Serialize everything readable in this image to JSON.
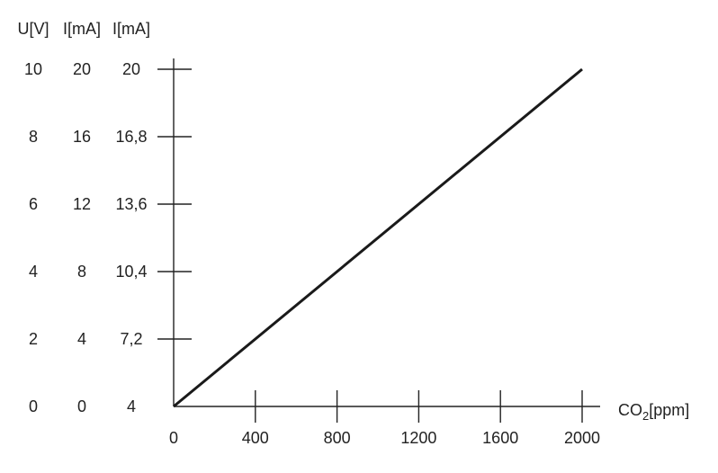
{
  "chart_data": {
    "type": "line",
    "title": "",
    "xlabel": "CO2[ppm]",
    "xlabel_main": "CO",
    "xlabel_sub": "2",
    "xlabel_unit": "[ppm]",
    "xlim": [
      0,
      2000
    ],
    "x_ticks": [
      "0",
      "400",
      "800",
      "1200",
      "1600",
      "2000"
    ],
    "x_tick_values": [
      0,
      400,
      800,
      1200,
      1600,
      2000
    ],
    "ylim": [
      0,
      10
    ],
    "y_tick_values": [
      0,
      2,
      4,
      6,
      8,
      10
    ],
    "y_scales": [
      {
        "header": "U[V]",
        "labels": [
          "0",
          "2",
          "4",
          "6",
          "8",
          "10"
        ]
      },
      {
        "header": "I[mA]",
        "labels": [
          "0",
          "4",
          "8",
          "12",
          "16",
          "20"
        ]
      },
      {
        "header": "I[mA]",
        "labels": [
          "4",
          "7,2",
          "10,4",
          "13,6",
          "16,8",
          "20"
        ]
      }
    ],
    "series": [
      {
        "x": [
          0,
          2000
        ],
        "y": [
          0,
          10
        ]
      }
    ],
    "grid": false,
    "line_color": "#1a1a1a"
  }
}
